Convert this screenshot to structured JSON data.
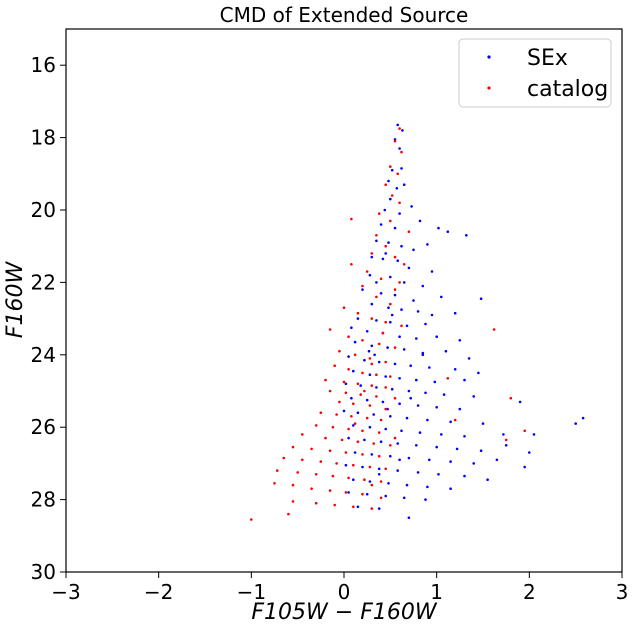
{
  "chart_data": {
    "type": "scatter",
    "title": "CMD of Extended Source",
    "xlabel": "F105W − F160W",
    "ylabel": "F160W",
    "xlim": [
      -3,
      3
    ],
    "ylim": [
      30,
      15
    ],
    "y_inverted": true,
    "xticks": [
      "−3",
      "−2",
      "−1",
      "0",
      "1",
      "2",
      "3"
    ],
    "xtick_values": [
      -3,
      -2,
      -1,
      0,
      1,
      2,
      3
    ],
    "yticks": [
      "16",
      "18",
      "20",
      "22",
      "24",
      "26",
      "28",
      "30"
    ],
    "ytick_values": [
      16,
      18,
      20,
      22,
      24,
      26,
      28,
      30
    ],
    "grid": false,
    "legend_position": "top-right",
    "series": [
      {
        "name": "SEx",
        "color": "#0000ff",
        "points": [
          [
            0.58,
            17.65
          ],
          [
            0.63,
            17.8
          ],
          [
            0.55,
            18.05
          ],
          [
            0.6,
            18.3
          ],
          [
            0.52,
            18.9
          ],
          [
            0.62,
            18.85
          ],
          [
            0.48,
            19.2
          ],
          [
            0.57,
            19.4
          ],
          [
            0.65,
            19.3
          ],
          [
            0.5,
            19.7
          ],
          [
            0.44,
            20.0
          ],
          [
            0.6,
            20.1
          ],
          [
            0.73,
            19.9
          ],
          [
            0.4,
            20.4
          ],
          [
            0.55,
            20.5
          ],
          [
            0.82,
            20.3
          ],
          [
            1.02,
            20.5
          ],
          [
            1.12,
            20.6
          ],
          [
            1.32,
            20.7
          ],
          [
            0.35,
            20.85
          ],
          [
            0.48,
            20.9
          ],
          [
            0.62,
            21.0
          ],
          [
            0.75,
            21.1
          ],
          [
            0.9,
            20.95
          ],
          [
            0.3,
            21.3
          ],
          [
            0.42,
            21.35
          ],
          [
            0.58,
            21.4
          ],
          [
            0.7,
            21.6
          ],
          [
            0.95,
            21.7
          ],
          [
            0.28,
            21.8
          ],
          [
            0.5,
            21.85
          ],
          [
            0.65,
            22.0
          ],
          [
            0.85,
            22.1
          ],
          [
            0.2,
            22.2
          ],
          [
            0.4,
            22.3
          ],
          [
            0.55,
            22.35
          ],
          [
            0.75,
            22.5
          ],
          [
            1.05,
            22.4
          ],
          [
            1.48,
            22.45
          ],
          [
            0.3,
            22.6
          ],
          [
            0.48,
            22.7
          ],
          [
            0.62,
            22.75
          ],
          [
            0.8,
            22.8
          ],
          [
            0.95,
            22.9
          ],
          [
            1.2,
            22.85
          ],
          [
            0.15,
            23.0
          ],
          [
            0.35,
            23.05
          ],
          [
            0.5,
            23.1
          ],
          [
            0.68,
            23.2
          ],
          [
            0.88,
            23.15
          ],
          [
            0.08,
            23.25
          ],
          [
            0.25,
            23.35
          ],
          [
            0.42,
            23.4
          ],
          [
            0.6,
            23.5
          ],
          [
            0.78,
            23.55
          ],
          [
            1.0,
            23.5
          ],
          [
            1.25,
            23.6
          ],
          [
            0.12,
            23.65
          ],
          [
            0.3,
            23.75
          ],
          [
            0.47,
            23.8
          ],
          [
            0.65,
            23.85
          ],
          [
            0.85,
            23.95
          ],
          [
            1.1,
            23.9
          ],
          [
            1.35,
            24.1
          ],
          [
            0.05,
            24.05
          ],
          [
            0.22,
            24.15
          ],
          [
            0.38,
            24.2
          ],
          [
            0.55,
            24.25
          ],
          [
            0.72,
            24.3
          ],
          [
            0.92,
            24.35
          ],
          [
            1.2,
            24.4
          ],
          [
            1.45,
            24.5
          ],
          [
            0.1,
            24.45
          ],
          [
            0.28,
            24.55
          ],
          [
            0.45,
            24.6
          ],
          [
            0.6,
            24.65
          ],
          [
            0.78,
            24.7
          ],
          [
            0.98,
            24.75
          ],
          [
            1.3,
            24.7
          ],
          [
            0.02,
            24.8
          ],
          [
            0.18,
            24.85
          ],
          [
            0.35,
            24.9
          ],
          [
            0.52,
            24.95
          ],
          [
            0.7,
            25.0
          ],
          [
            0.88,
            25.05
          ],
          [
            1.08,
            25.1
          ],
          [
            1.4,
            25.15
          ],
          [
            0.08,
            25.2
          ],
          [
            0.25,
            25.25
          ],
          [
            0.42,
            25.3
          ],
          [
            0.6,
            25.35
          ],
          [
            0.8,
            25.4
          ],
          [
            1.0,
            25.45
          ],
          [
            1.25,
            25.5
          ],
          [
            0.0,
            25.55
          ],
          [
            0.15,
            25.6
          ],
          [
            0.32,
            25.65
          ],
          [
            0.5,
            25.7
          ],
          [
            0.68,
            25.75
          ],
          [
            0.9,
            25.8
          ],
          [
            1.15,
            25.85
          ],
          [
            1.5,
            25.9
          ],
          [
            0.1,
            25.95
          ],
          [
            0.28,
            26.0
          ],
          [
            0.45,
            26.05
          ],
          [
            0.62,
            26.1
          ],
          [
            0.82,
            26.15
          ],
          [
            1.05,
            26.2
          ],
          [
            1.3,
            26.25
          ],
          [
            1.72,
            26.2
          ],
          [
            2.05,
            26.2
          ],
          [
            2.5,
            25.9
          ],
          [
            2.58,
            25.75
          ],
          [
            1.9,
            25.3
          ],
          [
            0.05,
            26.3
          ],
          [
            0.22,
            26.35
          ],
          [
            0.4,
            26.4
          ],
          [
            0.58,
            26.45
          ],
          [
            0.78,
            26.5
          ],
          [
            1.0,
            26.55
          ],
          [
            1.22,
            26.6
          ],
          [
            1.48,
            26.65
          ],
          [
            1.75,
            26.5
          ],
          [
            2.0,
            26.7
          ],
          [
            0.12,
            26.7
          ],
          [
            0.3,
            26.75
          ],
          [
            0.5,
            26.8
          ],
          [
            0.7,
            26.85
          ],
          [
            0.92,
            26.9
          ],
          [
            1.15,
            26.95
          ],
          [
            1.4,
            27.0
          ],
          [
            1.65,
            26.9
          ],
          [
            1.95,
            27.1
          ],
          [
            0.02,
            27.05
          ],
          [
            0.2,
            27.1
          ],
          [
            0.38,
            27.15
          ],
          [
            0.58,
            27.2
          ],
          [
            0.8,
            27.25
          ],
          [
            1.02,
            27.3
          ],
          [
            1.3,
            27.35
          ],
          [
            1.55,
            27.45
          ],
          [
            0.1,
            27.45
          ],
          [
            0.28,
            27.5
          ],
          [
            0.48,
            27.55
          ],
          [
            0.68,
            27.6
          ],
          [
            0.9,
            27.65
          ],
          [
            1.15,
            27.7
          ],
          [
            0.05,
            27.8
          ],
          [
            0.25,
            27.85
          ],
          [
            0.45,
            27.9
          ],
          [
            0.65,
            27.95
          ],
          [
            0.88,
            28.0
          ],
          [
            0.15,
            28.2
          ],
          [
            0.38,
            28.25
          ],
          [
            0.7,
            28.5
          ],
          [
            0.35,
            22.0
          ],
          [
            0.45,
            21.2
          ],
          [
            0.52,
            22.9
          ],
          [
            0.33,
            24.0
          ],
          [
            0.47,
            25.5
          ],
          [
            0.6,
            26.9
          ],
          [
            0.38,
            27.3
          ],
          [
            0.72,
            25.2
          ],
          [
            0.27,
            23.9
          ],
          [
            0.85,
            24.0
          ]
        ]
      },
      {
        "name": "catalog",
        "color": "#ff0000",
        "points": [
          [
            0.6,
            17.75
          ],
          [
            0.55,
            18.1
          ],
          [
            0.62,
            18.4
          ],
          [
            0.5,
            18.8
          ],
          [
            0.58,
            19.0
          ],
          [
            0.45,
            19.3
          ],
          [
            0.52,
            19.6
          ],
          [
            0.6,
            19.8
          ],
          [
            0.38,
            20.1
          ],
          [
            0.5,
            20.3
          ],
          [
            0.08,
            20.25
          ],
          [
            0.7,
            20.6
          ],
          [
            0.35,
            20.7
          ],
          [
            0.45,
            21.0
          ],
          [
            0.3,
            21.2
          ],
          [
            0.55,
            21.3
          ],
          [
            0.08,
            21.5
          ],
          [
            0.25,
            21.7
          ],
          [
            0.4,
            21.9
          ],
          [
            0.6,
            22.0
          ],
          [
            0.2,
            22.1
          ],
          [
            0.35,
            22.4
          ],
          [
            0.5,
            22.6
          ],
          [
            0.0,
            22.7
          ],
          [
            0.15,
            22.85
          ],
          [
            0.3,
            23.0
          ],
          [
            0.45,
            23.1
          ],
          [
            0.62,
            23.2
          ],
          [
            1.62,
            23.3
          ],
          [
            -0.15,
            23.3
          ],
          [
            0.05,
            23.5
          ],
          [
            0.2,
            23.6
          ],
          [
            0.38,
            23.7
          ],
          [
            0.55,
            23.8
          ],
          [
            -0.05,
            23.9
          ],
          [
            0.12,
            24.0
          ],
          [
            0.28,
            24.1
          ],
          [
            0.45,
            24.2
          ],
          [
            -0.1,
            24.3
          ],
          [
            0.05,
            24.4
          ],
          [
            0.2,
            24.5
          ],
          [
            0.35,
            24.55
          ],
          [
            0.5,
            24.6
          ],
          [
            -0.2,
            24.7
          ],
          [
            0.0,
            24.75
          ],
          [
            0.15,
            24.8
          ],
          [
            0.3,
            24.85
          ],
          [
            0.45,
            24.9
          ],
          [
            -0.15,
            25.0
          ],
          [
            0.02,
            25.05
          ],
          [
            0.18,
            25.1
          ],
          [
            0.35,
            25.15
          ],
          [
            0.55,
            25.2
          ],
          [
            1.8,
            25.2
          ],
          [
            1.12,
            24.65
          ],
          [
            -0.05,
            25.3
          ],
          [
            0.1,
            25.35
          ],
          [
            0.28,
            25.4
          ],
          [
            0.45,
            25.5
          ],
          [
            1.2,
            25.8
          ],
          [
            -0.25,
            25.6
          ],
          [
            -0.08,
            25.65
          ],
          [
            0.08,
            25.7
          ],
          [
            0.25,
            25.75
          ],
          [
            0.4,
            25.8
          ],
          [
            -0.3,
            25.95
          ],
          [
            -0.12,
            26.0
          ],
          [
            0.05,
            26.05
          ],
          [
            0.2,
            26.1
          ],
          [
            0.38,
            26.15
          ],
          [
            1.95,
            26.1
          ],
          [
            1.75,
            26.35
          ],
          [
            -0.45,
            26.2
          ],
          [
            -0.2,
            26.3
          ],
          [
            -0.02,
            26.35
          ],
          [
            0.15,
            26.4
          ],
          [
            0.32,
            26.45
          ],
          [
            0.5,
            26.5
          ],
          [
            -0.55,
            26.55
          ],
          [
            -0.35,
            26.6
          ],
          [
            -0.15,
            26.65
          ],
          [
            0.02,
            26.7
          ],
          [
            0.2,
            26.75
          ],
          [
            0.38,
            26.8
          ],
          [
            -0.65,
            26.85
          ],
          [
            -0.45,
            26.9
          ],
          [
            -0.25,
            26.95
          ],
          [
            -0.08,
            27.0
          ],
          [
            0.1,
            27.05
          ],
          [
            0.28,
            27.1
          ],
          [
            0.45,
            27.15
          ],
          [
            -0.72,
            27.2
          ],
          [
            -0.5,
            27.25
          ],
          [
            -0.3,
            27.3
          ],
          [
            -0.12,
            27.35
          ],
          [
            0.05,
            27.4
          ],
          [
            0.22,
            27.45
          ],
          [
            0.4,
            27.5
          ],
          [
            -0.75,
            27.55
          ],
          [
            -0.55,
            27.6
          ],
          [
            -0.35,
            27.7
          ],
          [
            -0.15,
            27.75
          ],
          [
            0.02,
            27.8
          ],
          [
            0.2,
            27.85
          ],
          [
            0.4,
            27.95
          ],
          [
            -0.55,
            28.05
          ],
          [
            -0.3,
            28.1
          ],
          [
            -0.1,
            28.15
          ],
          [
            0.1,
            28.2
          ],
          [
            0.3,
            28.25
          ],
          [
            -0.6,
            28.4
          ],
          [
            -1.0,
            28.55
          ],
          [
            0.65,
            21.5
          ],
          [
            0.55,
            22.2
          ],
          [
            0.42,
            23.4
          ],
          [
            0.3,
            24.25
          ],
          [
            0.22,
            25.0
          ],
          [
            0.12,
            25.9
          ],
          [
            0.55,
            26.3
          ],
          [
            0.3,
            27.6
          ]
        ]
      }
    ]
  }
}
